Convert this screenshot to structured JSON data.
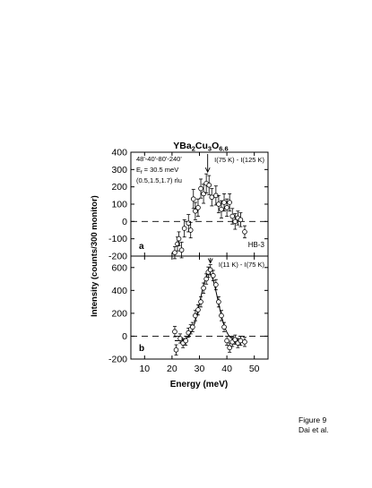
{
  "caption": {
    "line1": "Figure 9",
    "line2": "Dai et al."
  },
  "chart_data": {
    "type": "scatter",
    "title": "YBa2Cu3O6.6",
    "title_parts": {
      "base": "YBa",
      "s1": "2",
      "mid": "Cu",
      "s2": "3",
      "o": "O",
      "s3": "6.6"
    },
    "xlabel": "Energy (meV)",
    "ylabel": "Intensity (counts/300 monitor)",
    "xlim": [
      5,
      55
    ],
    "xticks": [
      10,
      20,
      30,
      40,
      50
    ],
    "grid": false,
    "panels": [
      {
        "label": "a",
        "title": "I(75 K) - I(125 K)",
        "instrument": "HB-3",
        "notes": {
          "collimation": "48'-40'-80'-240'",
          "ef_prefix": "E",
          "ef_sub": "f",
          "ef_value": " = 30.5 meV",
          "q": "(0.5,1.5,1.7) rlu"
        },
        "ylim": [
          -200,
          400
        ],
        "yticks": [
          -200,
          -100,
          0,
          100,
          200,
          300,
          400
        ],
        "arrow_x": 33,
        "points": [
          {
            "x": 21,
            "y": -180,
            "err": 35
          },
          {
            "x": 22,
            "y": -130,
            "err": 40
          },
          {
            "x": 22.5,
            "y": -100,
            "err": 40
          },
          {
            "x": 23.5,
            "y": -165,
            "err": 45
          },
          {
            "x": 24.5,
            "y": -40,
            "err": 50
          },
          {
            "x": 26,
            "y": -10,
            "err": 50
          },
          {
            "x": 26.8,
            "y": -50,
            "err": 45
          },
          {
            "x": 27.8,
            "y": 130,
            "err": 55
          },
          {
            "x": 28.5,
            "y": 60,
            "err": 50
          },
          {
            "x": 29.5,
            "y": 80,
            "err": 50
          },
          {
            "x": 30.5,
            "y": 190,
            "err": 55
          },
          {
            "x": 31.5,
            "y": 160,
            "err": 55
          },
          {
            "x": 32.5,
            "y": 220,
            "err": 55
          },
          {
            "x": 33.5,
            "y": 210,
            "err": 55
          },
          {
            "x": 34.5,
            "y": 140,
            "err": 50
          },
          {
            "x": 36,
            "y": 150,
            "err": 55
          },
          {
            "x": 37,
            "y": 100,
            "err": 50
          },
          {
            "x": 38,
            "y": 70,
            "err": 50
          },
          {
            "x": 39,
            "y": 110,
            "err": 50
          },
          {
            "x": 40,
            "y": 80,
            "err": 50
          },
          {
            "x": 41,
            "y": 110,
            "err": 50
          },
          {
            "x": 42,
            "y": 30,
            "err": 45
          },
          {
            "x": 43,
            "y": 0,
            "err": 45
          },
          {
            "x": 44,
            "y": 20,
            "err": 40
          },
          {
            "x": 45,
            "y": 10,
            "err": 40
          },
          {
            "x": 46.5,
            "y": -60,
            "err": 35
          }
        ],
        "fit": null
      },
      {
        "label": "b",
        "title": "I(11 K) - I(75 K)",
        "ylim": [
          -200,
          700
        ],
        "yticks": [
          -200,
          0,
          200,
          400,
          600
        ],
        "arrow_x": 34,
        "points": [
          {
            "x": 21,
            "y": 40,
            "err": 45
          },
          {
            "x": 21.5,
            "y": -120,
            "err": 45
          },
          {
            "x": 23,
            "y": -20,
            "err": 40
          },
          {
            "x": 24,
            "y": -60,
            "err": 40
          },
          {
            "x": 25,
            "y": -40,
            "err": 40
          },
          {
            "x": 26,
            "y": 30,
            "err": 40
          },
          {
            "x": 26.8,
            "y": 60,
            "err": 40
          },
          {
            "x": 27.5,
            "y": 80,
            "err": 40
          },
          {
            "x": 28.5,
            "y": 180,
            "err": 45
          },
          {
            "x": 29.5,
            "y": 230,
            "err": 45
          },
          {
            "x": 30.5,
            "y": 300,
            "err": 45
          },
          {
            "x": 31.5,
            "y": 420,
            "err": 45
          },
          {
            "x": 32.5,
            "y": 500,
            "err": 45
          },
          {
            "x": 33.2,
            "y": 560,
            "err": 45
          },
          {
            "x": 34,
            "y": 580,
            "err": 45
          },
          {
            "x": 35,
            "y": 530,
            "err": 45
          },
          {
            "x": 36,
            "y": 450,
            "err": 45
          },
          {
            "x": 37,
            "y": 300,
            "err": 45
          },
          {
            "x": 38,
            "y": 180,
            "err": 45
          },
          {
            "x": 39,
            "y": 80,
            "err": 40
          },
          {
            "x": 40,
            "y": -40,
            "err": 40
          },
          {
            "x": 41,
            "y": -100,
            "err": 40
          },
          {
            "x": 42,
            "y": -50,
            "err": 40
          },
          {
            "x": 43,
            "y": -30,
            "err": 40
          },
          {
            "x": 44,
            "y": -60,
            "err": 40
          },
          {
            "x": 45,
            "y": -40,
            "err": 40
          },
          {
            "x": 46.5,
            "y": -50,
            "err": 40
          }
        ],
        "fit": {
          "center": 33.5,
          "amplitude": 590,
          "sigma": 3.2,
          "baseline": -40,
          "from": 21,
          "to": 44
        }
      }
    ]
  }
}
